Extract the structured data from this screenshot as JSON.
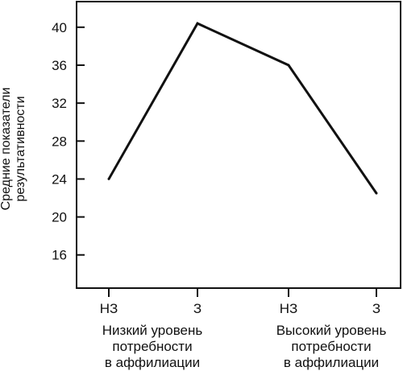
{
  "chart_data": {
    "type": "line",
    "categories": [
      "НЗ",
      "З",
      "НЗ",
      "З"
    ],
    "series": [
      {
        "values": [
          24,
          40.4,
          36,
          22.5
        ]
      }
    ],
    "groups": [
      {
        "label_lines": [
          "Низкий уровень",
          "потребности",
          "в аффилиации"
        ]
      },
      {
        "label_lines": [
          "Высокий уровень",
          "потребности",
          "в аффилиации"
        ]
      }
    ],
    "ylabel_lines": [
      "Средние показатели",
      "результативности"
    ],
    "yticks": [
      16,
      20,
      24,
      28,
      32,
      36,
      40
    ],
    "ylim": [
      12.5,
      42.7
    ],
    "grid": false,
    "colors": {
      "line": "#111111",
      "axis": "#111111",
      "text": "#111111"
    }
  }
}
